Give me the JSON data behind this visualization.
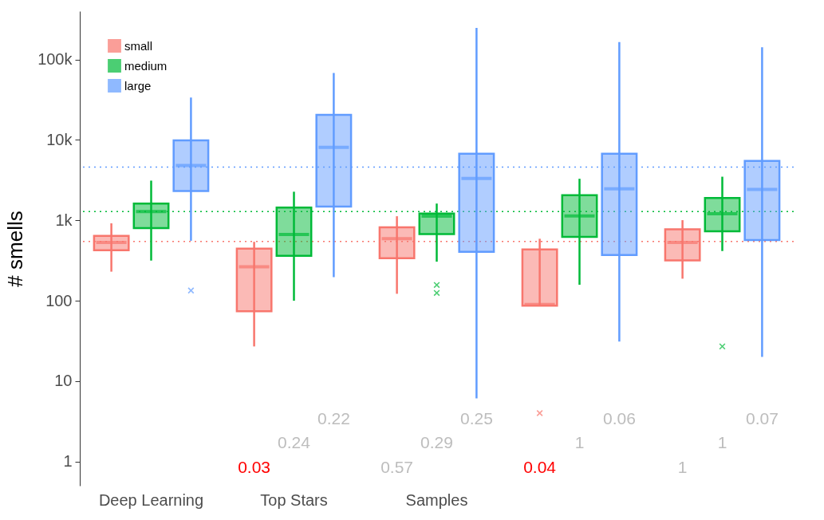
{
  "chart_data": {
    "type": "box",
    "ylabel": "# smells",
    "categories": [
      "Deep Learning",
      "Top Stars",
      "Samples",
      null,
      null
    ],
    "log": true,
    "ylim": [
      0.5,
      400000
    ],
    "yticks": [
      1,
      10,
      100,
      {
        "value": 1000,
        "label": "1k"
      },
      {
        "value": 10000,
        "label": "10k"
      },
      {
        "value": 100000,
        "label": "100k"
      }
    ],
    "legend": "top left",
    "marker": "cross",
    "series": [
      {
        "name": "small",
        "color": "#f8766d",
        "boxes": [
          {
            "low": 230,
            "q1": 425,
            "median": 532,
            "q3": 640,
            "high": 918
          },
          {
            "low": 27,
            "q1": 74,
            "median": 264,
            "q3": 444,
            "high": 540
          },
          {
            "low": 122,
            "q1": 339,
            "median": 590,
            "q3": 819,
            "high": 1125
          },
          {
            "low": 87,
            "q1": 87,
            "median": 90,
            "q3": 434,
            "high": 590,
            "outliers": [
              4
            ]
          },
          {
            "low": 188,
            "q1": 318,
            "median": 532,
            "q3": 774,
            "high": 1005
          }
        ]
      },
      {
        "name": "medium",
        "color": "#00ba38",
        "boxes": [
          {
            "low": 316,
            "q1": 800,
            "median": 1290,
            "q3": 1620,
            "high": 3120
          },
          {
            "low": 100,
            "q1": 362,
            "median": 668,
            "q3": 1440,
            "high": 2270
          },
          {
            "low": 306,
            "q1": 673,
            "median": 1125,
            "q3": 1218,
            "high": 1617,
            "outliers": [
              157,
              125
            ]
          },
          {
            "low": 158,
            "q1": 624,
            "median": 1135,
            "q3": 2055,
            "high": 3290
          },
          {
            "low": 415,
            "q1": 731,
            "median": 1210,
            "q3": 1900,
            "high": 3490,
            "outliers": [
              27
            ]
          }
        ]
      },
      {
        "name": "large",
        "color": "#619cff",
        "boxes": [
          {
            "low": 557,
            "q1": 2320,
            "median": 4800,
            "q3": 9900,
            "high": 33700,
            "outliers": [
              134
            ]
          },
          {
            "low": 196,
            "q1": 1480,
            "median": 8070,
            "q3": 20500,
            "high": 68000
          },
          {
            "low": 6.1,
            "q1": 406,
            "median": 3320,
            "q3": 6740,
            "high": 248000
          },
          {
            "low": 31,
            "q1": 371,
            "median": 2465,
            "q3": 6740,
            "high": 165000
          },
          {
            "low": 20,
            "q1": 570,
            "median": 2430,
            "q3": 5500,
            "high": 142000
          }
        ]
      }
    ],
    "ref_lines": [
      {
        "axis": "y",
        "value": 545,
        "color": "#f8766d",
        "line_style": "dotted"
      },
      {
        "axis": "y",
        "value": 1290,
        "color": "#00ba38",
        "line_style": "dotted"
      },
      {
        "axis": "y",
        "value": 4590,
        "color": "#619cff",
        "line_style": "dotted"
      }
    ],
    "annotations": [
      "0.03",
      "0.24",
      "0.22",
      "0.57",
      "0.29",
      "0.25",
      "0.04",
      "1",
      "0.06",
      "1",
      "1",
      "0.07"
    ]
  }
}
